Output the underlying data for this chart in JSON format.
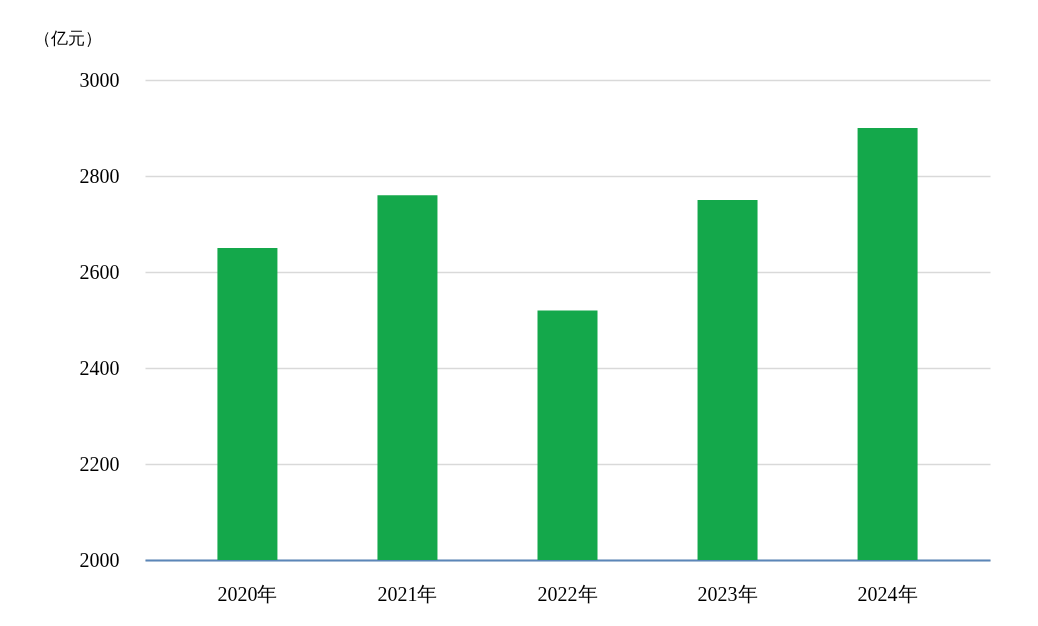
{
  "chart_data": {
    "type": "bar",
    "ylabel": "（亿元）",
    "categories": [
      "2020年",
      "2021年",
      "2022年",
      "2023年",
      "2024年"
    ],
    "values": [
      2650,
      2760,
      2520,
      2750,
      2900
    ],
    "color": "#14a84b",
    "ylim": [
      2000,
      3000
    ],
    "yticks": [
      2000,
      2200,
      2400,
      2600,
      2800,
      3000
    ],
    "grid": "y"
  }
}
